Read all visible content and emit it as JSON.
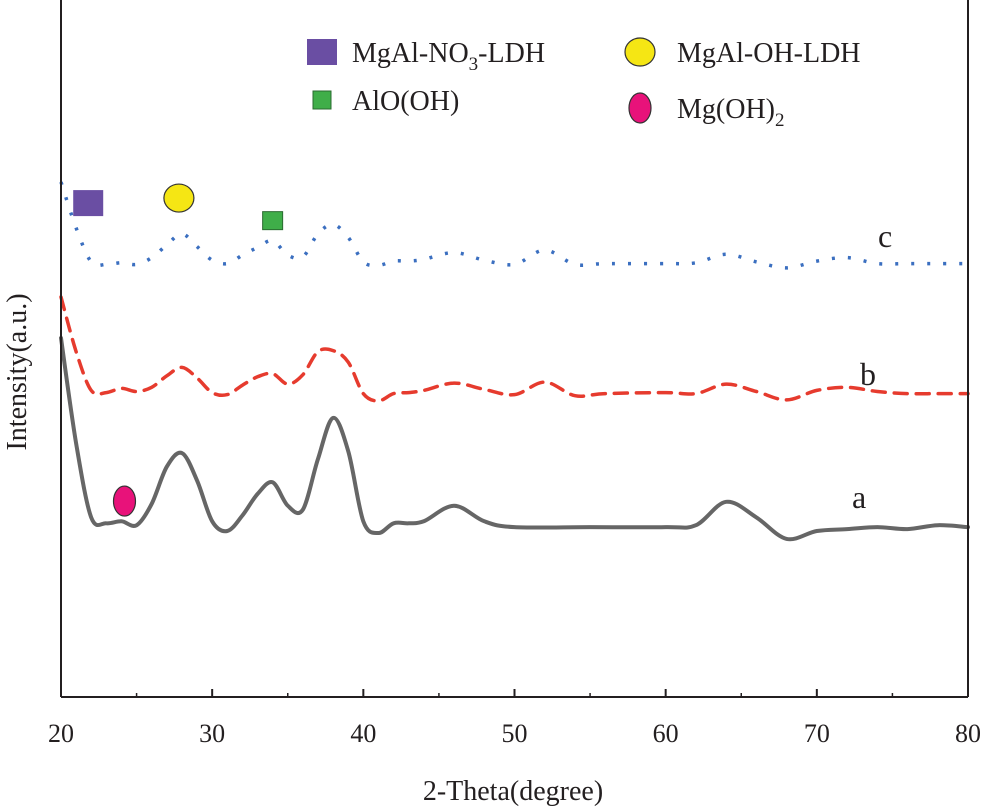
{
  "chart_data": {
    "type": "line",
    "title": "",
    "xlabel": "2-Theta(degree)",
    "ylabel": "Intensity(a.u.)",
    "xlim": [
      20,
      80
    ],
    "xticks": [
      20,
      30,
      40,
      50,
      60,
      70,
      80
    ],
    "grid": false,
    "y_ticks_shown": false,
    "legend": {
      "placement": "top-right",
      "entries": [
        {
          "label": "MgAl-NO",
          "sub": "3",
          "suffix": "-LDH",
          "marker": "square",
          "color": "#6a4ea3"
        },
        {
          "label": "MgAl-OH-LDH",
          "sub": "",
          "suffix": "",
          "marker": "circle",
          "color": "#f5e614"
        },
        {
          "label": "AlO(OH)",
          "sub": "",
          "suffix": "",
          "marker": "small-square",
          "color": "#3fae49"
        },
        {
          "label": "Mg(OH)",
          "sub": "2",
          "suffix": "",
          "marker": "ellipse",
          "color": "#e8127a"
        }
      ]
    },
    "series": [
      {
        "name": "a",
        "style": "solid",
        "color": "#666666",
        "x": [
          20,
          21,
          22,
          23,
          24,
          25,
          26,
          27,
          28,
          29,
          30,
          31,
          32,
          33,
          34,
          35,
          36,
          37,
          38,
          39,
          40,
          41,
          42,
          43,
          44,
          46,
          48,
          50,
          55,
          60,
          62,
          64,
          66,
          68,
          70,
          72,
          74,
          76,
          78,
          80
        ],
        "y": [
          10,
          4.6,
          0.8,
          0.5,
          0.6,
          0.4,
          1.5,
          3.4,
          4.1,
          2.7,
          0.6,
          0.1,
          0.9,
          2.0,
          2.6,
          1.4,
          1.2,
          3.8,
          5.9,
          4.2,
          0.6,
          0.0,
          0.5,
          0.5,
          0.6,
          1.4,
          0.6,
          0.3,
          0.3,
          0.3,
          0.4,
          1.6,
          0.8,
          -0.3,
          0.1,
          0.2,
          0.3,
          0.2,
          0.4,
          0.3
        ]
      },
      {
        "name": "b",
        "style": "dashed",
        "color": "#e63b2e",
        "x": [
          20,
          21,
          22,
          23,
          24,
          25,
          26,
          27,
          28,
          29,
          30,
          31,
          32,
          33,
          34,
          35,
          36,
          37,
          38,
          39,
          40,
          41,
          42,
          43,
          44,
          46,
          48,
          50,
          52,
          54,
          56,
          60,
          62,
          64,
          66,
          68,
          70,
          72,
          74,
          76,
          78,
          80
        ],
        "y": [
          10,
          4.8,
          1.1,
          0.9,
          1.3,
          1.0,
          1.4,
          2.5,
          3.3,
          2.3,
          0.9,
          0.7,
          1.6,
          2.4,
          2.7,
          1.7,
          2.6,
          4.8,
          4.9,
          3.8,
          0.8,
          0.1,
          0.8,
          0.9,
          1.1,
          1.8,
          1.2,
          0.7,
          1.9,
          0.6,
          0.8,
          0.9,
          0.8,
          1.7,
          1.0,
          0.2,
          1.1,
          1.4,
          1.0,
          0.8,
          0.8,
          0.8
        ]
      },
      {
        "name": "c",
        "style": "dotted",
        "color": "#3b6fc0",
        "x": [
          20,
          21,
          22,
          23,
          24,
          25,
          26,
          27,
          28,
          29,
          30,
          31,
          32,
          33,
          34,
          35,
          36,
          37,
          38,
          39,
          40,
          41,
          42,
          43,
          44,
          46,
          48,
          50,
          52,
          54,
          56,
          60,
          62,
          64,
          66,
          68,
          70,
          72,
          74,
          76,
          78,
          80
        ],
        "y": [
          10,
          4.6,
          0.6,
          0.3,
          0.5,
          0.3,
          1.1,
          2.6,
          3.9,
          2.4,
          0.8,
          0.4,
          1.4,
          2.3,
          3.1,
          1.4,
          1.2,
          3.9,
          5.0,
          3.5,
          0.6,
          0.2,
          0.7,
          0.7,
          0.9,
          1.7,
          0.8,
          0.3,
          2.0,
          0.3,
          0.4,
          0.4,
          0.5,
          1.5,
          0.6,
          -0.1,
          0.7,
          1.1,
          0.4,
          0.4,
          0.4,
          0.4
        ]
      }
    ],
    "curve_labels": [
      "c",
      "b",
      "a"
    ],
    "peak_markers": [
      {
        "series": "c",
        "x": 21.8,
        "marker": "square",
        "color": "#6a4ea3"
      },
      {
        "series": "c",
        "x": 27.8,
        "marker": "circle",
        "color": "#f5e614"
      },
      {
        "series": "c",
        "x": 34.0,
        "marker": "small-square",
        "color": "#3fae49"
      },
      {
        "series": "a",
        "x": 24.2,
        "marker": "ellipse",
        "color": "#e8127a"
      }
    ]
  }
}
